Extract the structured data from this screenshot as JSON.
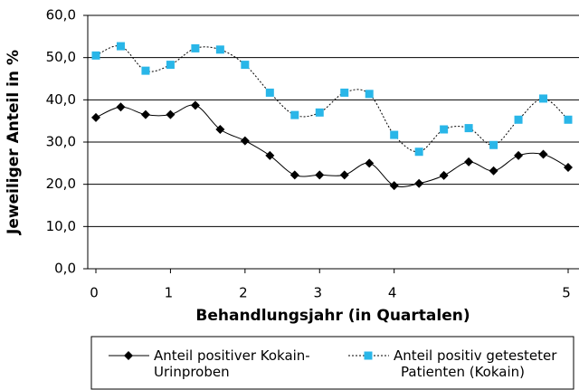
{
  "chart_data": {
    "type": "line",
    "ylabel": "Jeweiliger Anteil in %",
    "xlabel": "Behandlungsjahr (in Quartalen)",
    "categories": [
      "0",
      null,
      null,
      "1",
      null,
      null,
      "2",
      null,
      null,
      "3",
      null,
      null,
      "4",
      null,
      null,
      null,
      null,
      null,
      null,
      "5"
    ],
    "series": [
      {
        "name": "Anteil positiver Kokain-\nUrinproben",
        "color": "#000000",
        "marker": "diamond",
        "dash": "solid",
        "values": [
          35.8,
          38.3,
          36.5,
          36.5,
          38.7,
          33,
          30.3,
          26.8,
          22.2,
          22.2,
          22.2,
          25,
          19.7,
          20.2,
          22.1,
          25.3,
          23.2,
          26.8,
          27.1,
          24
        ]
      },
      {
        "name": "Anteil positiv getesteter\nPatienten (Kokain)",
        "color": "#29b6e8",
        "marker": "square",
        "dash": "dotted",
        "values": [
          50.5,
          52.7,
          46.9,
          48.3,
          52.2,
          51.9,
          48.3,
          41.7,
          36.4,
          37,
          41.7,
          41.4,
          31.7,
          27.7,
          33,
          33.3,
          29.3,
          35.3,
          40.3,
          35.3
        ]
      }
    ],
    "ylim": [
      0,
      60
    ],
    "yticks": [
      {
        "value": 0,
        "label": "0,0"
      },
      {
        "value": 10,
        "label": "10,0"
      },
      {
        "value": 20,
        "label": "20,0"
      },
      {
        "value": 30,
        "label": "30,0"
      },
      {
        "value": 40,
        "label": "40,0"
      },
      {
        "value": 50,
        "label": "50,0"
      },
      {
        "value": 60,
        "label": "60,0"
      }
    ],
    "grid": true
  }
}
